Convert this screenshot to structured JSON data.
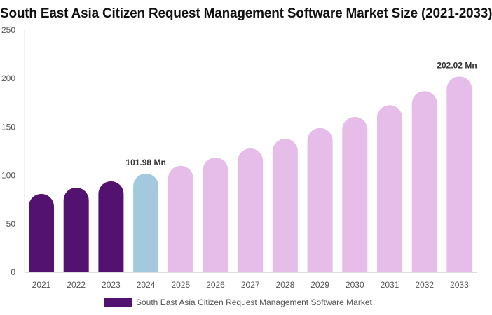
{
  "chart_data": {
    "type": "bar",
    "title": "South East Asia Citizen Request Management Software Market Size (2021-2033)",
    "categories": [
      "2021",
      "2022",
      "2023",
      "2024",
      "2025",
      "2026",
      "2027",
      "2028",
      "2029",
      "2030",
      "2031",
      "2032",
      "2033"
    ],
    "series": [
      {
        "name": "South East Asia Citizen Request Management Software Market",
        "values": [
          81,
          87.5,
          94,
          101.98,
          110,
          118.5,
          128,
          138,
          149,
          160.5,
          172.5,
          187,
          202.02
        ]
      }
    ],
    "bar_colors": [
      "#541270",
      "#541270",
      "#541270",
      "#a4c9de",
      "#e6bce8",
      "#e6bce8",
      "#e6bce8",
      "#e6bce8",
      "#e6bce8",
      "#e6bce8",
      "#e6bce8",
      "#e6bce8",
      "#e6bce8"
    ],
    "legend_color": "#541270",
    "data_labels": [
      {
        "category": "2024",
        "text": "101.98 Mn"
      },
      {
        "category": "2033",
        "text": "202.02 Mn"
      }
    ],
    "ylim": [
      0,
      250
    ],
    "yticks": [
      "0",
      "50",
      "100",
      "150",
      "200",
      "250"
    ],
    "xlabel": "",
    "ylabel": "",
    "grid": false,
    "legend_position": "bottom"
  }
}
